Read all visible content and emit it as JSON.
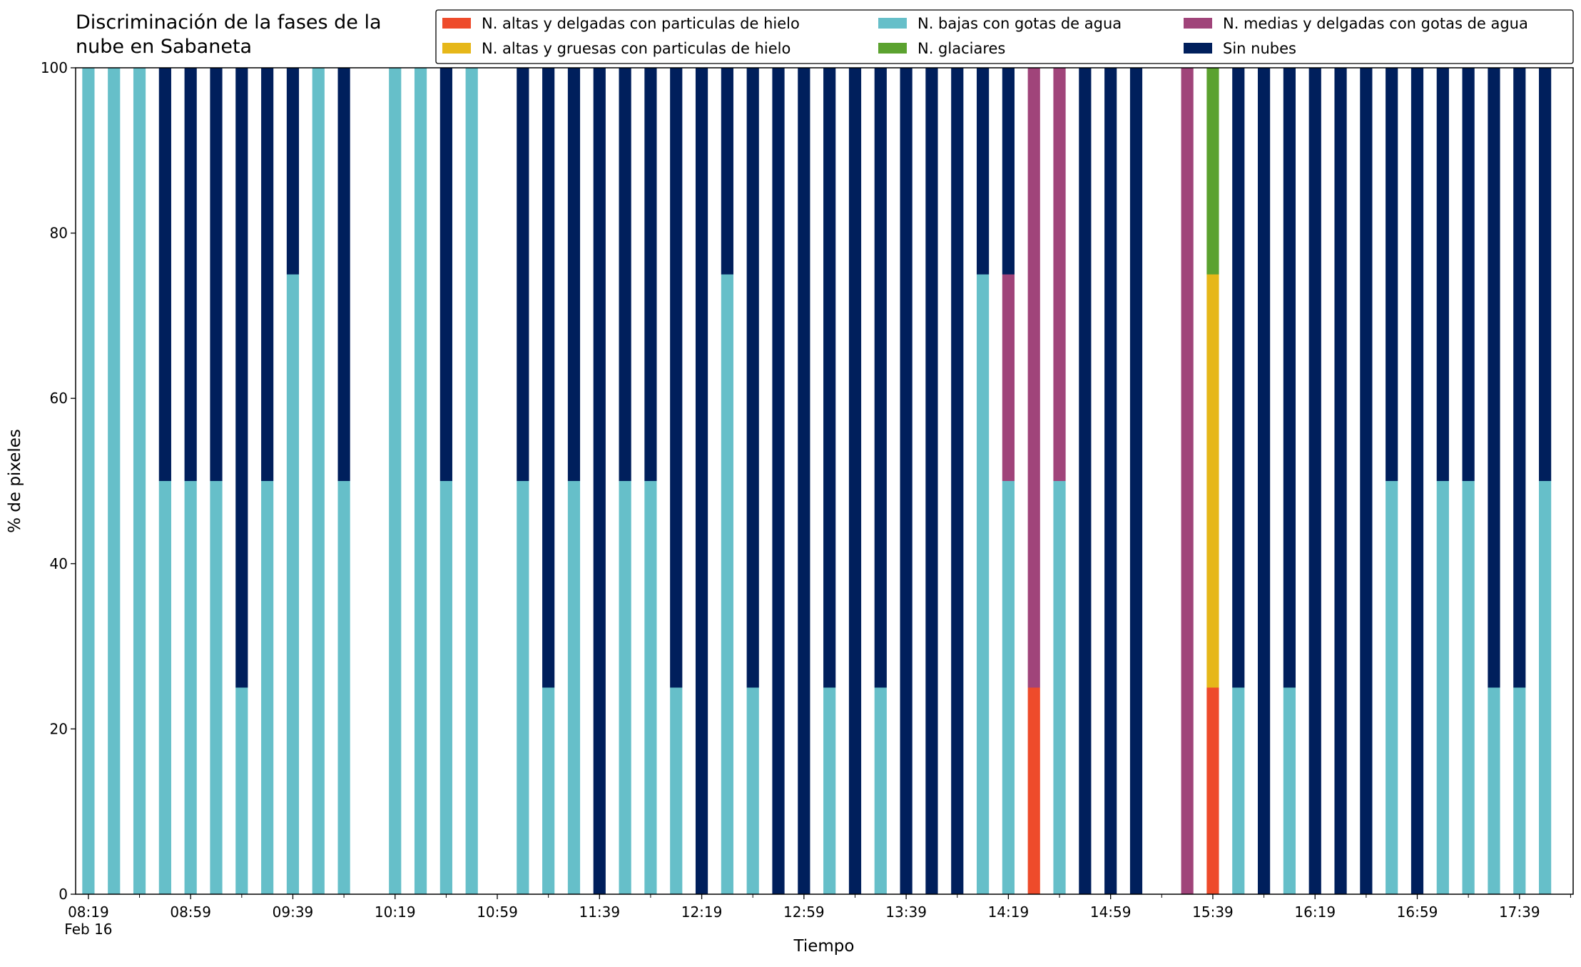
{
  "chart_data": {
    "type": "bar",
    "stacked": true,
    "title": "Discriminación de la fases de la\nnube en Sabaneta",
    "xlabel": "Tiempo",
    "ylabel": "% de pixeles",
    "date_label": "Feb 16",
    "x": [
      "08:19",
      "08:29",
      "08:39",
      "08:49",
      "08:59",
      "09:09",
      "09:19",
      "09:29",
      "09:39",
      "09:49",
      "09:59",
      "10:19",
      "10:29",
      "10:39",
      "10:49",
      "11:09",
      "11:19",
      "11:29",
      "11:39",
      "11:49",
      "11:59",
      "12:09",
      "12:19",
      "12:29",
      "12:39",
      "12:49",
      "12:59",
      "13:09",
      "13:19",
      "13:29",
      "13:39",
      "13:49",
      "13:59",
      "14:09",
      "14:19",
      "14:29",
      "14:39",
      "14:49",
      "14:59",
      "15:09",
      "15:29",
      "15:39",
      "15:49",
      "15:59",
      "16:09",
      "16:19",
      "16:29",
      "16:39",
      "16:49",
      "16:59",
      "17:09",
      "17:19",
      "17:29",
      "17:39",
      "17:49"
    ],
    "series": [
      {
        "name": "N. altas y delgadas con particulas de hielo",
        "color": "#ee4b2b",
        "values": [
          0,
          0,
          0,
          0,
          0,
          0,
          0,
          0,
          0,
          0,
          0,
          0,
          0,
          0,
          0,
          0,
          0,
          0,
          0,
          0,
          0,
          0,
          0,
          0,
          0,
          0,
          0,
          0,
          0,
          0,
          0,
          0,
          0,
          0,
          0,
          25,
          0,
          0,
          0,
          0,
          0,
          25,
          0,
          0,
          0,
          0,
          0,
          0,
          0,
          0,
          0,
          0,
          0,
          0,
          0
        ]
      },
      {
        "name": "N. altas y gruesas con particulas de hielo",
        "color": "#e6b719",
        "values": [
          0,
          0,
          0,
          0,
          0,
          0,
          0,
          0,
          0,
          0,
          0,
          0,
          0,
          0,
          0,
          0,
          0,
          0,
          0,
          0,
          0,
          0,
          0,
          0,
          0,
          0,
          0,
          0,
          0,
          0,
          0,
          0,
          0,
          0,
          0,
          0,
          0,
          0,
          0,
          0,
          0,
          50,
          0,
          0,
          0,
          0,
          0,
          0,
          0,
          0,
          0,
          0,
          0,
          0,
          0
        ]
      },
      {
        "name": "N. bajas con gotas de agua",
        "color": "#66bfc9",
        "values": [
          100,
          100,
          100,
          50,
          50,
          50,
          25,
          50,
          75,
          100,
          50,
          100,
          100,
          50,
          100,
          50,
          25,
          50,
          0,
          50,
          50,
          25,
          0,
          75,
          25,
          0,
          0,
          25,
          0,
          25,
          0,
          0,
          0,
          75,
          50,
          0,
          50,
          0,
          0,
          0,
          0,
          0,
          25,
          0,
          25,
          0,
          0,
          0,
          50,
          0,
          50,
          50,
          25,
          25,
          50
        ]
      },
      {
        "name": "N. glaciares",
        "color": "#5ba22f",
        "values": [
          0,
          0,
          0,
          0,
          0,
          0,
          0,
          0,
          0,
          0,
          0,
          0,
          0,
          0,
          0,
          0,
          0,
          0,
          0,
          0,
          0,
          0,
          0,
          0,
          0,
          0,
          0,
          0,
          0,
          0,
          0,
          0,
          0,
          0,
          0,
          0,
          0,
          0,
          0,
          0,
          0,
          25,
          0,
          0,
          0,
          0,
          0,
          0,
          0,
          0,
          0,
          0,
          0,
          0,
          0
        ]
      },
      {
        "name": "N. medias y delgadas con gotas de agua",
        "color": "#a0447a",
        "values": [
          0,
          0,
          0,
          0,
          0,
          0,
          0,
          0,
          0,
          0,
          0,
          0,
          0,
          0,
          0,
          0,
          0,
          0,
          0,
          0,
          0,
          0,
          0,
          0,
          0,
          0,
          0,
          0,
          0,
          0,
          0,
          0,
          0,
          0,
          25,
          75,
          50,
          0,
          0,
          0,
          100,
          0,
          0,
          0,
          0,
          0,
          0,
          0,
          0,
          0,
          0,
          0,
          0,
          0,
          0
        ]
      },
      {
        "name": "Sin nubes",
        "color": "#001f5c",
        "values": [
          0,
          0,
          0,
          50,
          50,
          50,
          75,
          50,
          25,
          0,
          50,
          0,
          0,
          50,
          0,
          50,
          75,
          50,
          100,
          50,
          50,
          75,
          100,
          25,
          75,
          100,
          100,
          75,
          100,
          75,
          100,
          100,
          100,
          25,
          25,
          0,
          0,
          100,
          100,
          100,
          0,
          0,
          75,
          100,
          75,
          100,
          100,
          100,
          50,
          100,
          50,
          50,
          75,
          75,
          50
        ]
      }
    ],
    "xlim": [
      "08:14",
      "18:00"
    ],
    "xticks": [
      "08:19",
      "08:59",
      "09:39",
      "10:19",
      "10:59",
      "11:39",
      "12:19",
      "12:59",
      "13:39",
      "14:19",
      "14:59",
      "15:39",
      "16:19",
      "16:59",
      "17:39"
    ],
    "xminorticks": [
      "08:39",
      "09:19",
      "09:59",
      "10:39",
      "11:19",
      "11:59",
      "12:39",
      "13:19",
      "13:59",
      "14:39",
      "15:19",
      "15:59",
      "16:39",
      "17:19",
      "17:59"
    ],
    "ylim": [
      0,
      100
    ],
    "yticks": [
      0,
      20,
      40,
      60,
      80,
      100
    ],
    "grid": false,
    "legend": "upper right",
    "legend_columns": 3
  }
}
